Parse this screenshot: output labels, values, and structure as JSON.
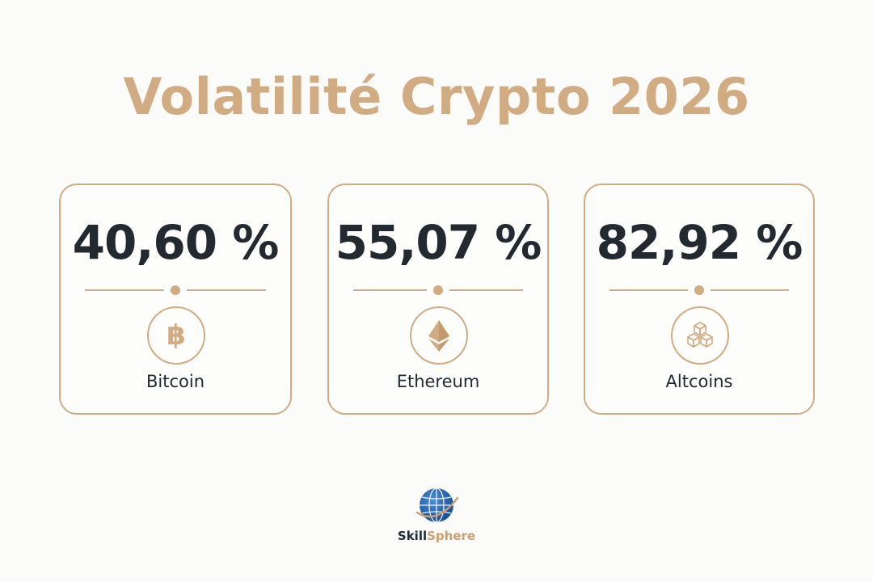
{
  "title": "Volatilité Crypto 2026",
  "accent_color": "#d1ac83",
  "text_color": "#232930",
  "cards": [
    {
      "value": "40,60 %",
      "label": "Bitcoin",
      "icon": "bitcoin-icon"
    },
    {
      "value": "55,07 %",
      "label": "Ethereum",
      "icon": "ethereum-icon"
    },
    {
      "value": "82,92 %",
      "label": "Altcoins",
      "icon": "cubes-icon"
    }
  ],
  "logo": {
    "name_part1": "Skill",
    "name_part2": "Sphere",
    "icon": "globe-icon"
  }
}
